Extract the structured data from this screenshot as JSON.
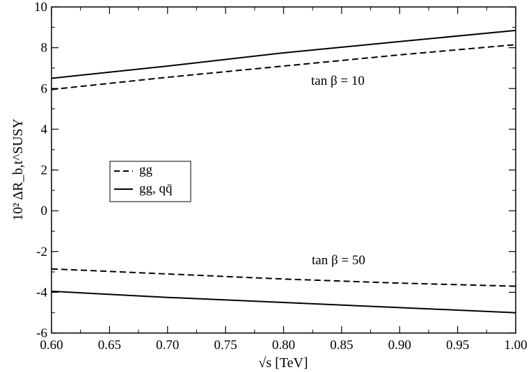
{
  "chart_data": {
    "type": "line",
    "xlabel": "√s   [TeV]",
    "ylabel": "10² ΔR_b,t^SUSY",
    "xlim": [
      0.6,
      1.0
    ],
    "ylim": [
      -6,
      10
    ],
    "x_ticks": [
      "0.60",
      "0.65",
      "0.70",
      "0.75",
      "0.80",
      "0.85",
      "0.90",
      "0.95",
      "1.00"
    ],
    "y_ticks": [
      "-6",
      "-4",
      "-2",
      "0",
      "2",
      "4",
      "6",
      "8",
      "10"
    ],
    "grid": false,
    "legend_placement": "center-left",
    "legend": [
      {
        "label": "gg",
        "style": "dashed"
      },
      {
        "label": "gg, qq̄",
        "style": "solid"
      }
    ],
    "annotations": [
      "tan β = 10",
      "tan β = 50"
    ],
    "series": [
      {
        "style": "solid",
        "group": "tan β = 10",
        "x": [
          0.6,
          0.7,
          0.8,
          0.9,
          1.0
        ],
        "y": [
          6.5,
          7.1,
          7.75,
          8.3,
          8.85
        ]
      },
      {
        "style": "dashed",
        "group": "tan β = 10",
        "x": [
          0.6,
          0.7,
          0.8,
          0.9,
          1.0
        ],
        "y": [
          5.95,
          6.55,
          7.1,
          7.65,
          8.15
        ]
      },
      {
        "style": "dashed",
        "group": "tan β = 50",
        "x": [
          0.6,
          0.7,
          0.8,
          0.9,
          1.0
        ],
        "y": [
          -2.85,
          -3.1,
          -3.35,
          -3.55,
          -3.7
        ]
      },
      {
        "style": "solid",
        "group": "tan β = 50",
        "x": [
          0.6,
          0.7,
          0.8,
          0.9,
          1.0
        ],
        "y": [
          -3.95,
          -4.25,
          -4.5,
          -4.75,
          -5.0
        ]
      }
    ]
  }
}
